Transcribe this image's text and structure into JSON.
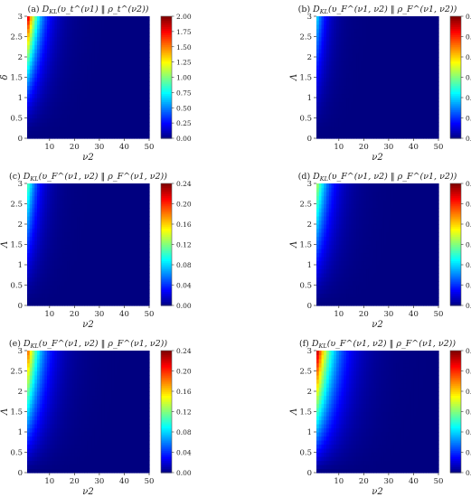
{
  "chart_data": [
    {
      "type": "heatmap",
      "title": "(a) D_KL(υ_t^(ν1) ‖ ρ_t^(ν2))",
      "title_prefix": "(a)",
      "title_arg": "(υ_t^(ν1) ‖ ρ_t^(ν2))",
      "xlabel": "ν2",
      "ylabel": "δ",
      "xlim": [
        1,
        50
      ],
      "ylim": [
        0,
        3
      ],
      "xticks": [
        10,
        20,
        30,
        40,
        50
      ],
      "yticks": [
        0,
        0.5,
        1,
        1.5,
        2,
        2.5,
        3
      ],
      "ytick_labels": [
        "0",
        "0.5",
        "1",
        "1.5",
        "2",
        "2.5",
        "3"
      ],
      "clim": [
        0,
        2.0
      ],
      "colorbar_ticks": [
        "0.00",
        "0.25",
        "0.50",
        "0.75",
        "1.00",
        "1.25",
        "1.50",
        "1.75",
        "2.00"
      ],
      "colormap": "jet",
      "peak_value": 2.0,
      "x_decay": 4.5,
      "y_power": 1.6
    },
    {
      "type": "heatmap",
      "title": "(b) D_KL(υ_F^(ν1, ν2) ‖ ρ_F^(ν1, ν2))",
      "title_prefix": "(b)",
      "title_arg": "(υ_F^(ν1, ν2) ‖ ρ_F^(ν1, ν2))",
      "xlabel": "ν2",
      "ylabel": "Λ",
      "xlim": [
        1,
        50
      ],
      "ylim": [
        0,
        3
      ],
      "xticks": [
        10,
        20,
        30,
        40,
        50
      ],
      "yticks": [
        0,
        0.5,
        1,
        1.5,
        2,
        2.5,
        3
      ],
      "ytick_labels": [
        "0",
        "0.5",
        "1",
        "1.5",
        "2",
        "2.5",
        "3"
      ],
      "clim": [
        0,
        0.24
      ],
      "colorbar_ticks": [
        "0.00",
        "0.04",
        "0.08",
        "0.12",
        "0.16",
        "0.20",
        "0.24"
      ],
      "colormap": "jet",
      "peak_value": 0.09,
      "x_decay": 3.5,
      "y_power": 1.5
    },
    {
      "type": "heatmap",
      "title": "(c) D_KL(υ_F^(ν1, ν2) ‖ ρ_F^(ν1, ν2))",
      "title_prefix": "(c)",
      "title_arg": "(υ_F^(ν1, ν2) ‖ ρ_F^(ν1, ν2))",
      "xlabel": "ν2",
      "ylabel": "Λ",
      "xlim": [
        1,
        50
      ],
      "ylim": [
        0,
        3
      ],
      "xticks": [
        10,
        20,
        30,
        40,
        50
      ],
      "yticks": [
        0,
        0.5,
        1,
        1.5,
        2,
        2.5,
        3
      ],
      "ytick_labels": [
        "0",
        "0.5",
        "1",
        "1.5",
        "2",
        "2.5",
        "3"
      ],
      "clim": [
        0,
        0.24
      ],
      "colorbar_ticks": [
        "0.00",
        "0.04",
        "0.08",
        "0.12",
        "0.16",
        "0.20",
        "0.24"
      ],
      "colormap": "jet",
      "peak_value": 0.12,
      "x_decay": 4.0,
      "y_power": 1.4
    },
    {
      "type": "heatmap",
      "title": "(d) D_KL(υ_F^(ν1, ν2) ‖ ρ_F^(ν1, ν2))",
      "title_prefix": "(d)",
      "title_arg": "(υ_F^(ν1, ν2) ‖ ρ_F^(ν1, ν2))",
      "xlabel": "ν2",
      "ylabel": "Λ",
      "xlim": [
        1,
        50
      ],
      "ylim": [
        0,
        3
      ],
      "xticks": [
        10,
        20,
        30,
        40,
        50
      ],
      "yticks": [
        0,
        0.5,
        1,
        1.5,
        2,
        2.5,
        3
      ],
      "ytick_labels": [
        "0",
        "0.5",
        "1",
        "1.5",
        "2",
        "2.5",
        "3"
      ],
      "clim": [
        0,
        0.24
      ],
      "colorbar_ticks": [
        "0.00",
        "0.04",
        "0.08",
        "0.12",
        "0.16",
        "0.20",
        "0.24"
      ],
      "colormap": "jet",
      "peak_value": 0.14,
      "x_decay": 5.0,
      "y_power": 1.3
    },
    {
      "type": "heatmap",
      "title": "(e) D_KL(υ_F^(ν1, ν2) ‖ ρ_F^(ν1, ν2))",
      "title_prefix": "(e)",
      "title_arg": "(υ_F^(ν1, ν2) ‖ ρ_F^(ν1, ν2))",
      "xlabel": "ν2",
      "ylabel": "Λ",
      "xlim": [
        1,
        50
      ],
      "ylim": [
        0,
        3
      ],
      "xticks": [
        10,
        20,
        30,
        40,
        50
      ],
      "yticks": [
        0,
        0.5,
        1,
        1.5,
        2,
        2.5,
        3
      ],
      "ytick_labels": [
        "0",
        "0.5",
        "1",
        "1.5",
        "2",
        "2.5",
        "3"
      ],
      "clim": [
        0,
        0.24
      ],
      "colorbar_ticks": [
        "0.00",
        "0.04",
        "0.08",
        "0.12",
        "0.16",
        "0.20",
        "0.24"
      ],
      "colormap": "jet",
      "peak_value": 0.2,
      "x_decay": 5.5,
      "y_power": 1.2
    },
    {
      "type": "heatmap",
      "title": "(f) D_KL(υ_F^(ν1, ν2) ‖ ρ_F^(ν1, ν2))",
      "title_prefix": "(f)",
      "title_arg": "(υ_F^(ν1, ν2) ‖ ρ_F^(ν1, ν2))",
      "xlabel": "ν2",
      "ylabel": "Λ",
      "xlim": [
        1,
        50
      ],
      "ylim": [
        0,
        3
      ],
      "xticks": [
        10,
        20,
        30,
        40,
        50
      ],
      "yticks": [
        0,
        0.5,
        1,
        1.5,
        2,
        2.5,
        3
      ],
      "ytick_labels": [
        "0",
        "0.5",
        "1",
        "1.5",
        "2",
        "2.5",
        "3"
      ],
      "clim": [
        0,
        0.24
      ],
      "colorbar_ticks": [
        "0.00",
        "0.04",
        "0.08",
        "0.12",
        "0.16",
        "0.20",
        "0.24"
      ],
      "colormap": "jet",
      "peak_value": 0.24,
      "x_decay": 6.5,
      "y_power": 1.1
    }
  ]
}
